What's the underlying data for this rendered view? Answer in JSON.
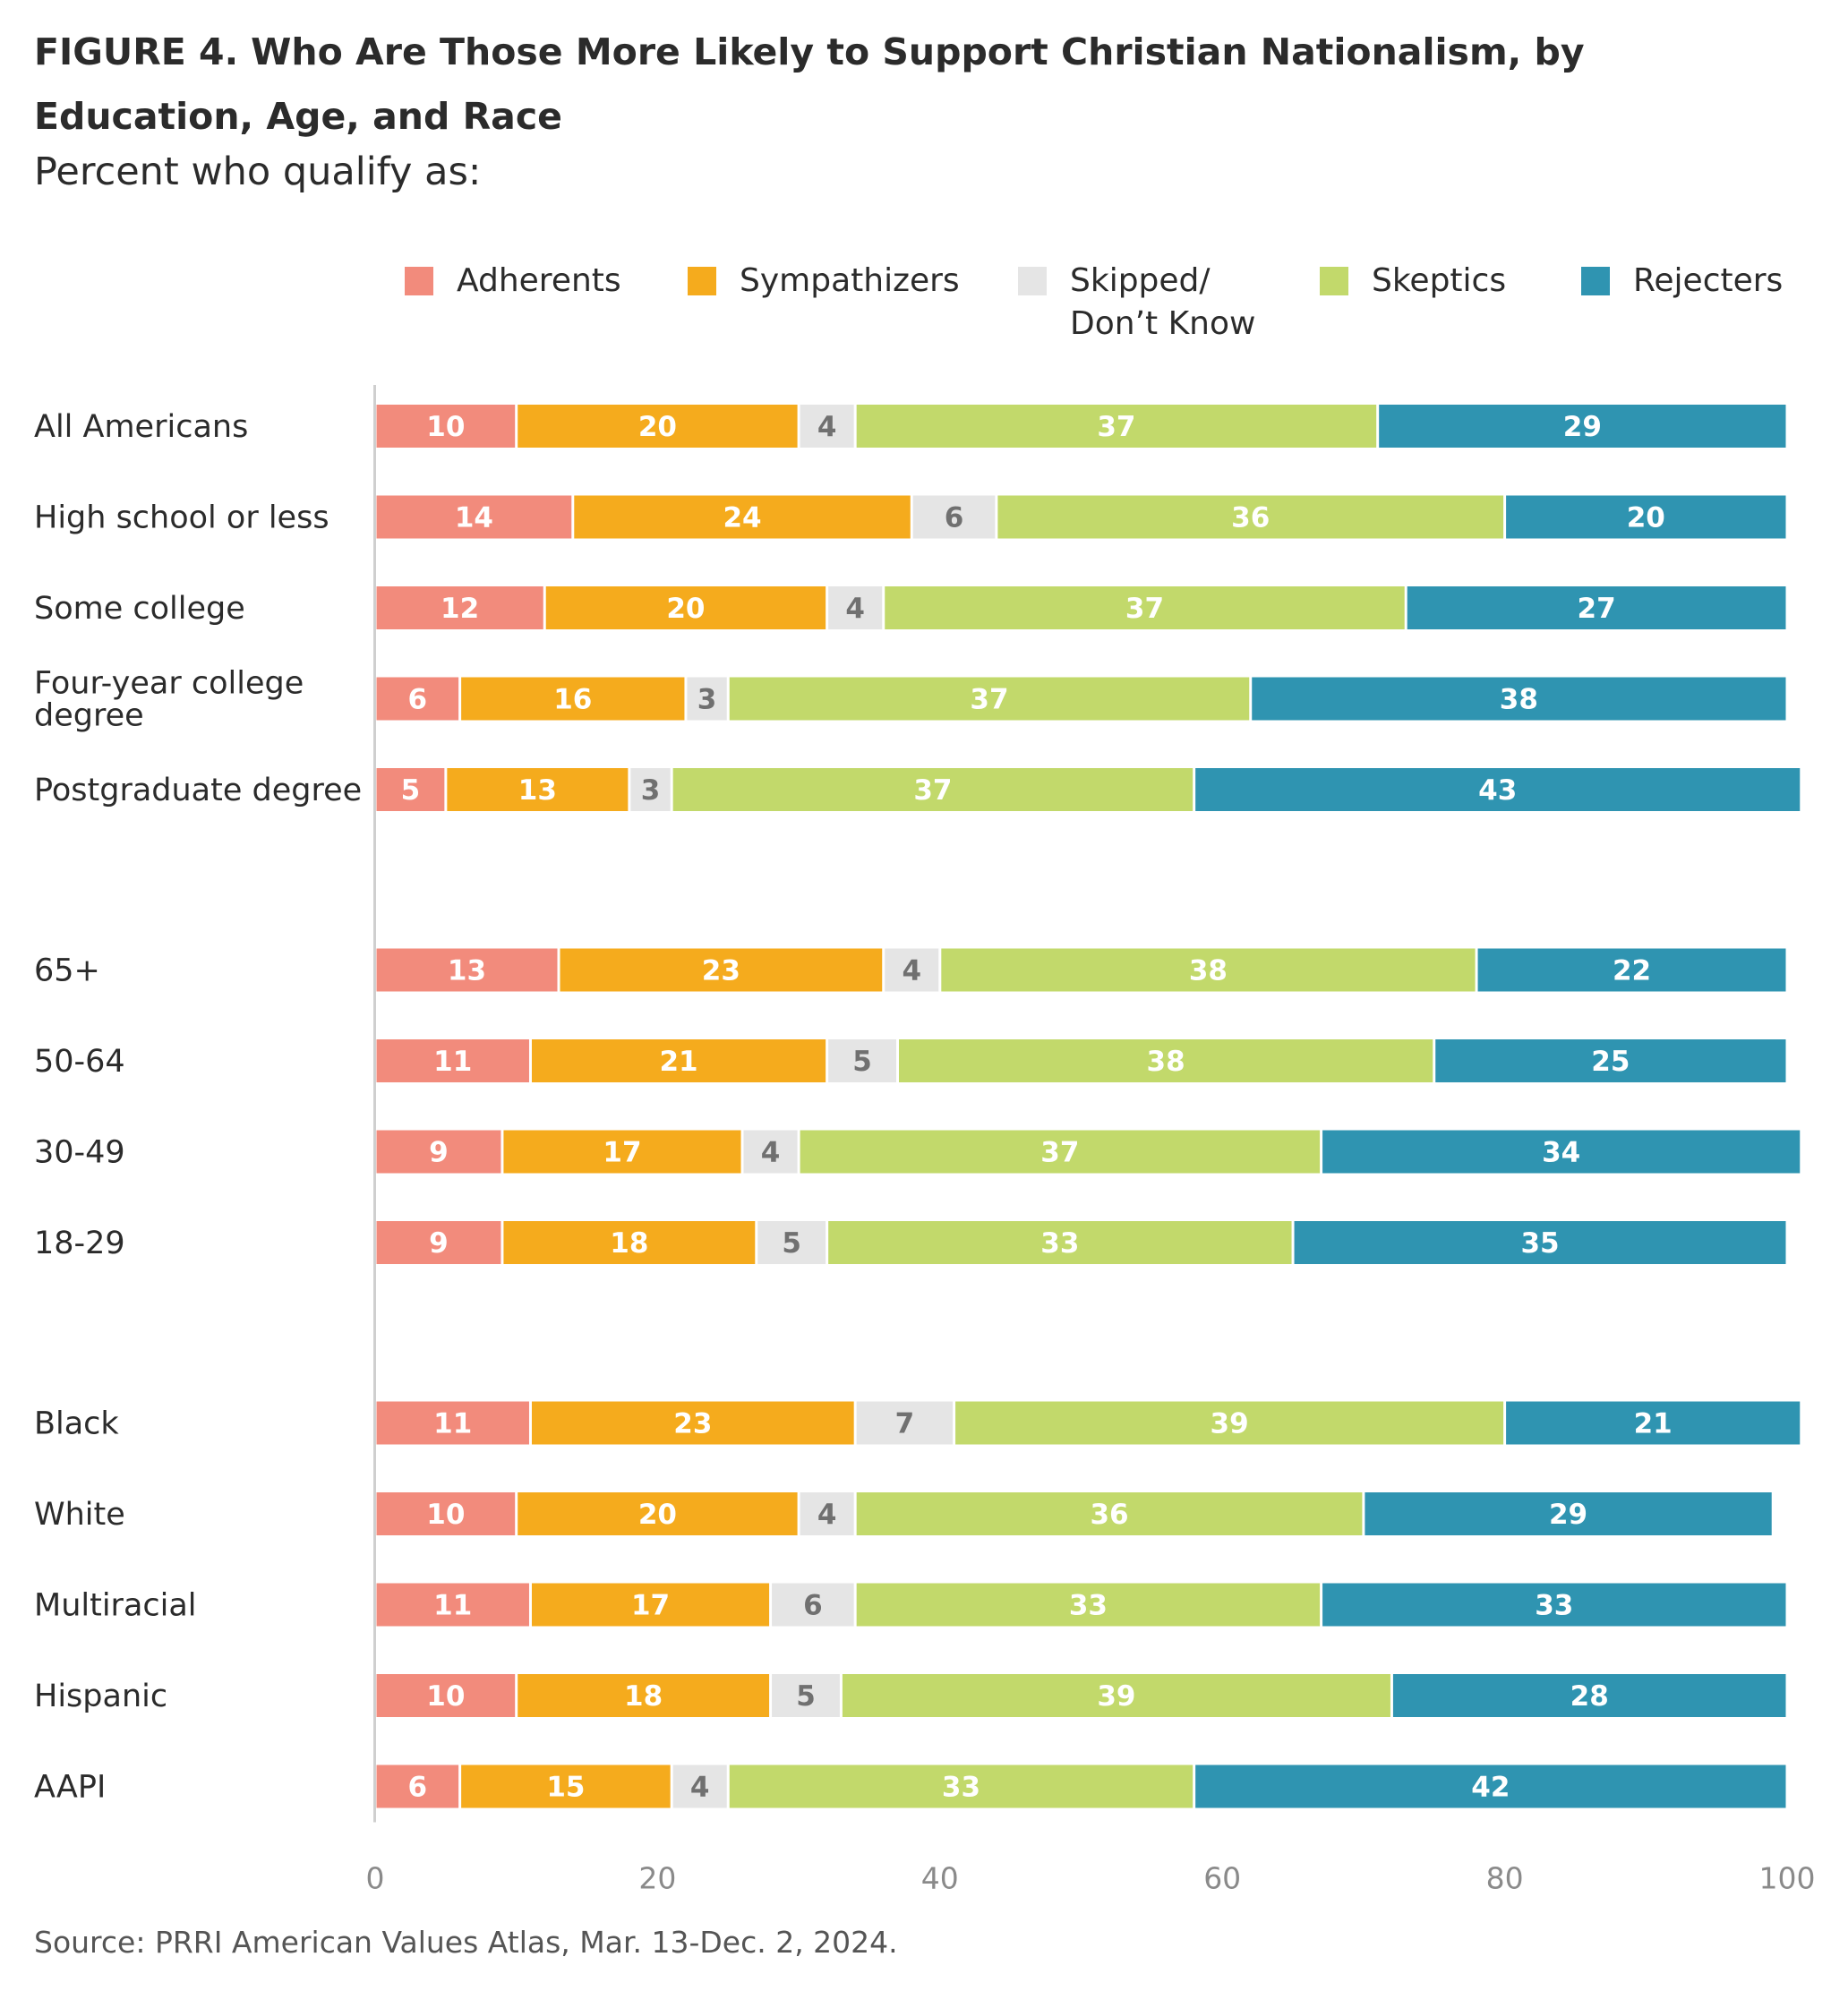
{
  "header": {
    "figure_label": "FIGURE 4.",
    "title": "Who Are Those More Likely to Support Christian Nationalism, by Education, Age, and Race",
    "subtitle": "Percent who qualify as:"
  },
  "source": "Source: PRRI American Values Atlas, Mar. 13-Dec. 2, 2024.",
  "colors": {
    "adherents": "#f28b7c",
    "sympathizers": "#f5ab1d",
    "skipped": "#e5e5e5",
    "skeptics": "#c2d96b",
    "rejecters": "#2f94b1",
    "label_light": "#ffffff",
    "label_dark": "#707070",
    "axis_text": "#8a8a8a",
    "baseline": "#cfcfcf"
  },
  "chart_data": {
    "type": "bar",
    "orientation": "horizontal",
    "stacked": true,
    "title": "Who Are Those More Likely to Support Christian Nationalism, by Education, Age, and Race",
    "subtitle": "Percent who qualify as:",
    "xlim": [
      0,
      100
    ],
    "xticks": [
      0,
      20,
      40,
      60,
      80,
      100
    ],
    "grid": false,
    "legend_position": "top-right",
    "categories": [
      "All Americans",
      "High school or less",
      "Some college",
      "Four-year college degree",
      "Postgraduate degree",
      "65+",
      "50-64",
      "30-49",
      "18-29",
      "Black",
      "White",
      "Multiracial",
      "Hispanic",
      "AAPI"
    ],
    "groups": [
      [
        "All Americans",
        "High school or less",
        "Some college",
        "Four-year college degree",
        "Postgraduate degree"
      ],
      [
        "65+",
        "50-64",
        "30-49",
        "18-29"
      ],
      [
        "Black",
        "White",
        "Multiracial",
        "Hispanic",
        "AAPI"
      ]
    ],
    "series": [
      {
        "name": "Adherents",
        "color_key": "adherents",
        "values": [
          10,
          14,
          12,
          6,
          5,
          13,
          11,
          9,
          9,
          11,
          10,
          11,
          10,
          6
        ]
      },
      {
        "name": "Sympathizers",
        "color_key": "sympathizers",
        "values": [
          20,
          24,
          20,
          16,
          13,
          23,
          21,
          17,
          18,
          23,
          20,
          17,
          18,
          15
        ]
      },
      {
        "name": "Skipped/\nDon’t Know",
        "color_key": "skipped",
        "values": [
          4,
          6,
          4,
          3,
          3,
          4,
          5,
          4,
          5,
          7,
          4,
          6,
          5,
          4
        ]
      },
      {
        "name": "Skeptics",
        "color_key": "skeptics",
        "values": [
          37,
          36,
          37,
          37,
          37,
          38,
          38,
          37,
          33,
          39,
          36,
          33,
          39,
          33
        ]
      },
      {
        "name": "Rejecters",
        "color_key": "rejecters",
        "values": [
          29,
          20,
          27,
          38,
          43,
          22,
          25,
          34,
          35,
          21,
          29,
          33,
          28,
          42
        ]
      }
    ]
  }
}
